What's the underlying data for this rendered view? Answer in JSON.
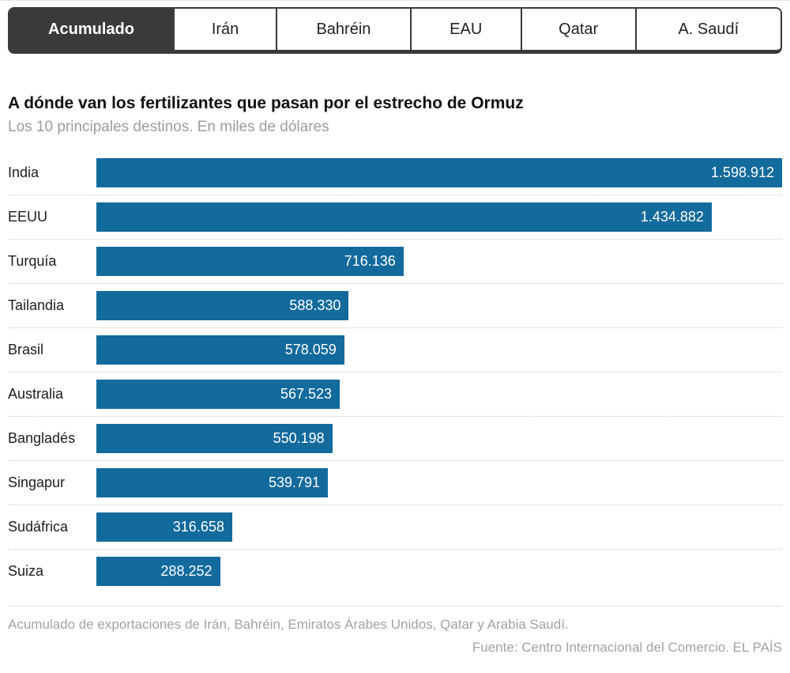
{
  "tabs": {
    "items": [
      {
        "label": "Acumulado",
        "active": true
      },
      {
        "label": "Irán",
        "active": false
      },
      {
        "label": "Bahréin",
        "active": false
      },
      {
        "label": "EAU",
        "active": false
      },
      {
        "label": "Qatar",
        "active": false
      },
      {
        "label": "A. Saudí",
        "active": false
      }
    ]
  },
  "header": {
    "title": "A dónde van los fertilizantes que pasan por el estrecho de Ormuz",
    "subtitle": "Los 10 principales destinos. En miles de dólares"
  },
  "chart_data": {
    "type": "bar",
    "orientation": "horizontal",
    "title": "A dónde van los fertilizantes que pasan por el estrecho de Ormuz",
    "subtitle": "Los 10 principales destinos. En miles de dólares",
    "unit": "miles de dólares",
    "categories": [
      "India",
      "EEUU",
      "Turquía",
      "Tailandia",
      "Brasil",
      "Australia",
      "Bangladés",
      "Singapur",
      "Sudáfrica",
      "Suiza"
    ],
    "values": [
      1598912,
      1434882,
      716136,
      588330,
      578059,
      567523,
      550198,
      539791,
      316658,
      288252
    ],
    "value_labels": [
      "1.598.912",
      "1.434.882",
      "716.136",
      "588.330",
      "578.059",
      "567.523",
      "550.198",
      "539.791",
      "316.658",
      "288.252"
    ],
    "xlim": [
      0,
      1598912
    ],
    "grid": false,
    "legend": "none",
    "bar_color": "#136a9d"
  },
  "colors": {
    "bar": "#136a9d",
    "active_tab": "#3a3a3a",
    "subtitle_gray": "#9c9c9c",
    "footer_gray": "#a2a2a2"
  },
  "footer": {
    "note": "Acumulado de exportaciones de Irán, Bahréin, Emiratos Árabes Unidos, Qatar y Arabia Saudí.",
    "source": "Fuente: Centro Internacional del Comercio. EL PAÍS"
  }
}
